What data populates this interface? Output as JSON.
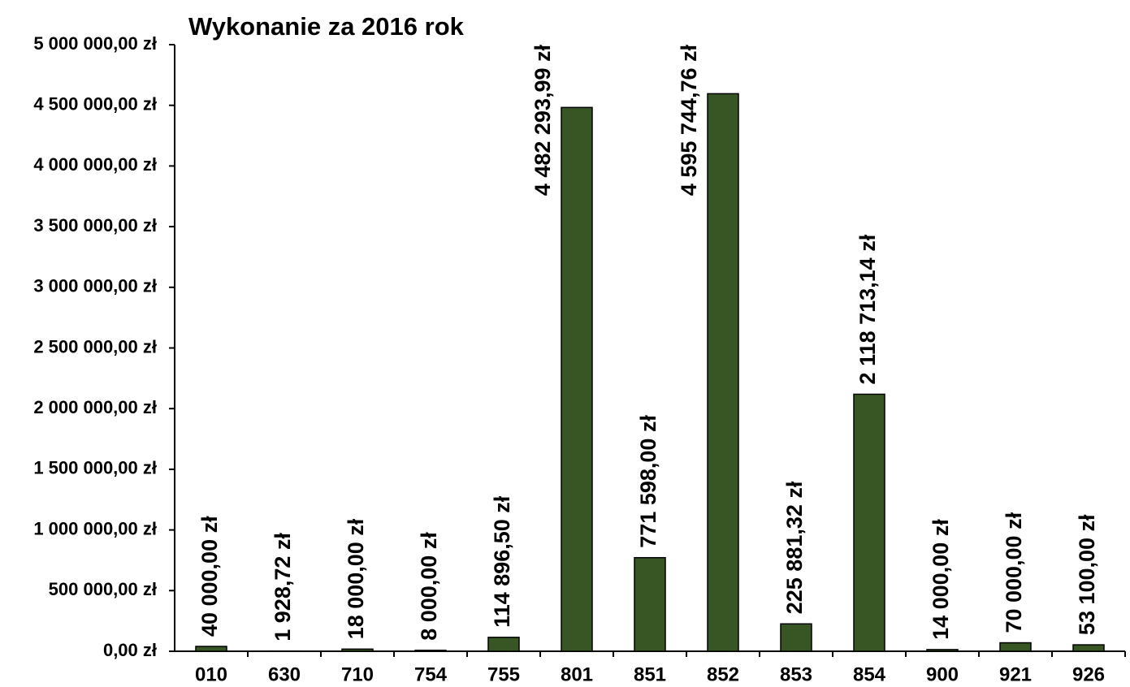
{
  "chart_data": {
    "type": "bar",
    "title": "Wykonanie za 2016 rok",
    "categories": [
      "010",
      "630",
      "710",
      "754",
      "755",
      "801",
      "851",
      "852",
      "853",
      "854",
      "900",
      "921",
      "926"
    ],
    "values": [
      40000.0,
      1928.72,
      18000.0,
      8000.0,
      114896.5,
      4482293.99,
      771598.0,
      4595744.76,
      225881.32,
      2118713.14,
      14000.0,
      70000.0,
      53100.0
    ],
    "value_labels": [
      "40 000,00 zł",
      "1 928,72 zł",
      "18 000,00 zł",
      "8 000,00 zł",
      "114 896,50 zł",
      "4 482 293,99 zł",
      "771 598,00 zł",
      "4 595 744,76 zł",
      "225 881,32 zł",
      "2 118 713,14 zł",
      "14 000,00 zł",
      "70 000,00 zł",
      "53 100,00 zł"
    ],
    "color": "#375623",
    "ylim": [
      0,
      5000000
    ],
    "yticks": [
      {
        "value": 0,
        "label": "0,00 zł"
      },
      {
        "value": 500000,
        "label": "500 000,00 zł"
      },
      {
        "value": 1000000,
        "label": "1 000 000,00 zł"
      },
      {
        "value": 1500000,
        "label": "1 500 000,00 zł"
      },
      {
        "value": 2000000,
        "label": "2 000 000,00 zł"
      },
      {
        "value": 2500000,
        "label": "2 500 000,00 zł"
      },
      {
        "value": 3000000,
        "label": "3 000 000,00 zł"
      },
      {
        "value": 3500000,
        "label": "3 500 000,00 zł"
      },
      {
        "value": 4000000,
        "label": "4 000 000,00 zł"
      },
      {
        "value": 4500000,
        "label": "4 500 000,00 zł"
      },
      {
        "value": 5000000,
        "label": "5 000 000,00 zł"
      }
    ]
  }
}
